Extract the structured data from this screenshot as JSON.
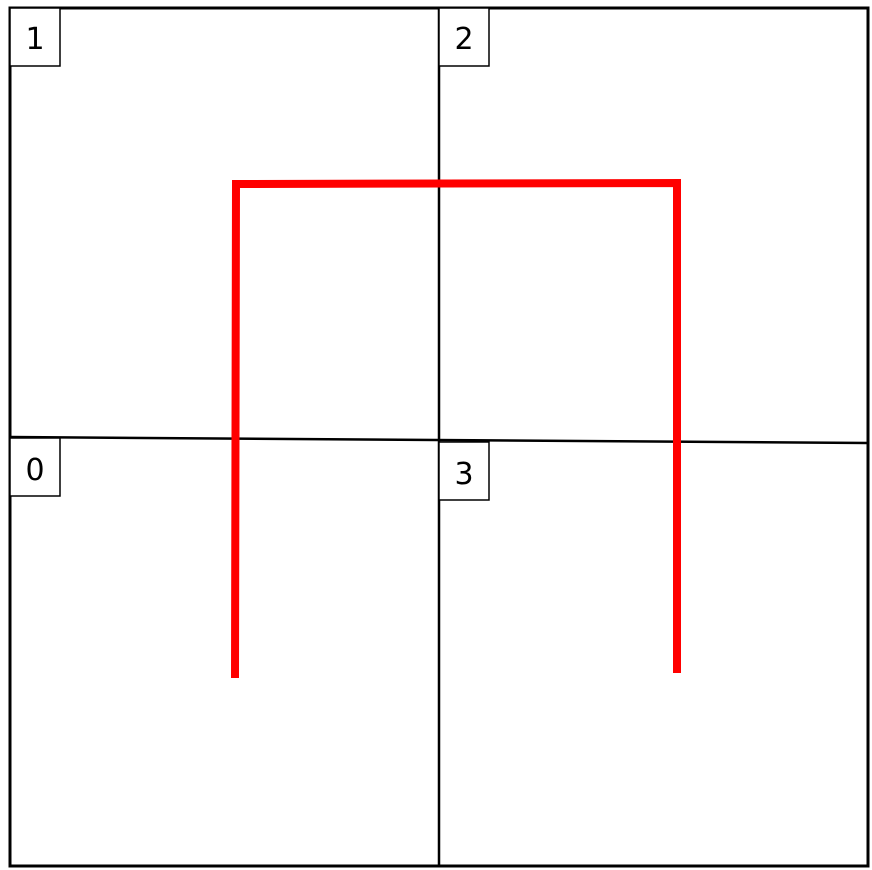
{
  "diagram": {
    "cells": [
      {
        "label": "1",
        "position": "top-left"
      },
      {
        "label": "2",
        "position": "top-right"
      },
      {
        "label": "0",
        "position": "bottom-left"
      },
      {
        "label": "3",
        "position": "bottom-right"
      }
    ],
    "colors": {
      "grid": "#000000",
      "path": "#ff0000",
      "background": "#ffffff"
    },
    "path_shape": "inverted-U spanning cells 0, 1, 2, 3"
  }
}
